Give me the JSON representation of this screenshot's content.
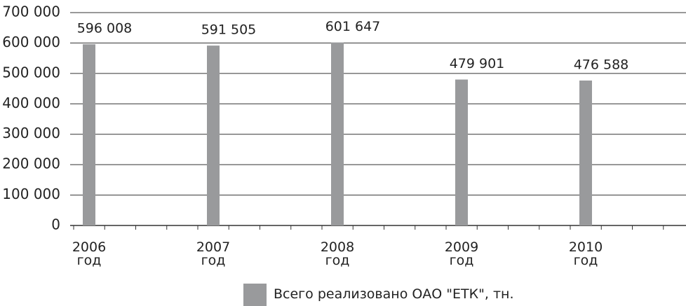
{
  "chart_data": {
    "type": "bar",
    "categories": [
      "2006\nгод",
      "2007\nгод",
      "2008\nгод",
      "2009\nгод",
      "2010\nгод"
    ],
    "series": [
      {
        "name": "Всего реализовано ОАО \"ЕТК\", тн.",
        "color": "#999a9c",
        "values": [
          596008,
          591505,
          601647,
          479901,
          476588
        ],
        "value_labels": [
          "596 008",
          "591 505",
          "601 647",
          "479 901",
          "476 588"
        ]
      }
    ],
    "ylim": [
      0,
      700000
    ],
    "yticks": [
      0,
      {
        "value": 100000,
        "label": "100 000"
      },
      {
        "value": 200000,
        "label": "200 000"
      },
      {
        "value": 300000,
        "label": "300 000"
      },
      {
        "value": 400000,
        "label": "400 000"
      },
      {
        "value": 500000,
        "label": "500 000"
      },
      {
        "value": 600000,
        "label": "600 000"
      },
      {
        "value": 700000,
        "label": "700 000"
      }
    ],
    "grid": true,
    "legend": "bottom"
  }
}
